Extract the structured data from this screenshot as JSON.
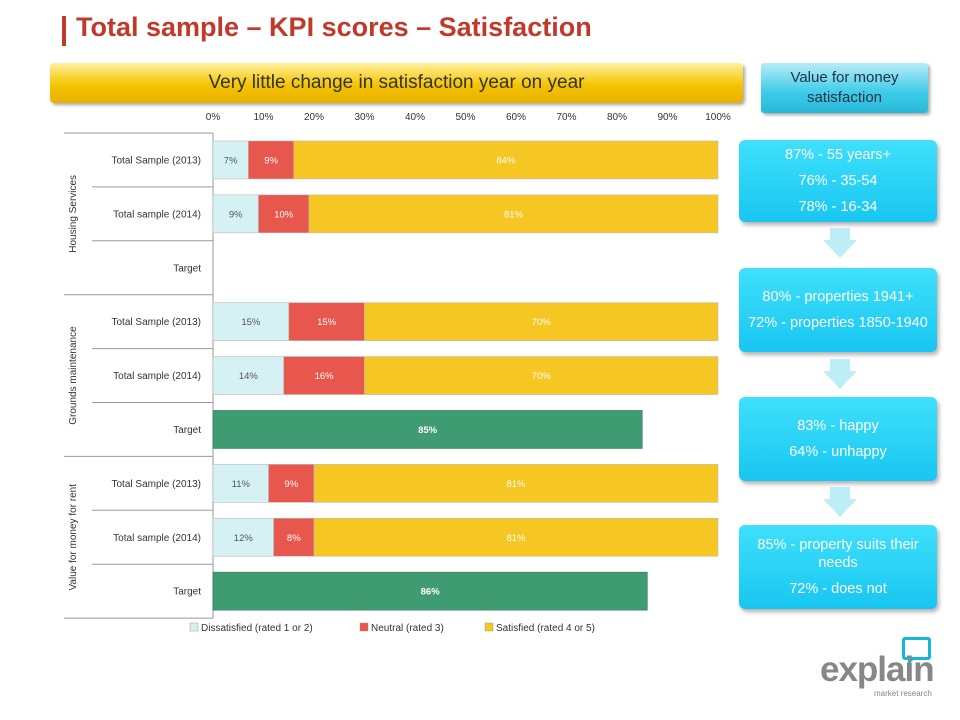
{
  "header": {
    "title": "Total sample – KPI scores – Satisfaction"
  },
  "banner": {
    "text": "Very little change in satisfaction year on year"
  },
  "side_header": {
    "text": "Value for money satisfaction"
  },
  "boxes": [
    {
      "lines": [
        "87% -  55 years+",
        "76% - 35-54",
        "78% - 16-34"
      ]
    },
    {
      "lines": [
        "80%  - properties 1941+",
        "72% - properties 1850-1940"
      ]
    },
    {
      "lines": [
        "83% - happy",
        "64% - unhappy"
      ]
    },
    {
      "lines": [
        "85% - property suits their needs",
        "72% - does not"
      ]
    }
  ],
  "logo": {
    "name": "explain",
    "tagline": "market research"
  },
  "colors": {
    "dissatisfied": "#d6f1f3",
    "neutral": "#e8574d",
    "satisfied": "#f6c623",
    "target": "#3f9b72",
    "title": "#c0392b",
    "box": "#1fcaf1"
  },
  "chart_data": {
    "type": "bar",
    "orientation": "horizontal",
    "stacked": true,
    "xlim": [
      0,
      100
    ],
    "x_ticks": [
      "0%",
      "10%",
      "20%",
      "30%",
      "40%",
      "50%",
      "60%",
      "70%",
      "80%",
      "90%",
      "100%"
    ],
    "groups": [
      {
        "name": "Housing Services",
        "rows": [
          {
            "label": "Total Sample (2013)",
            "dissatisfied": 7,
            "neutral": 9,
            "satisfied": 84
          },
          {
            "label": "Total sample (2014)",
            "dissatisfied": 9,
            "neutral": 10,
            "satisfied": 81
          },
          {
            "label": "Target"
          }
        ]
      },
      {
        "name": "Grounds maintenance",
        "rows": [
          {
            "label": "Total Sample (2013)",
            "dissatisfied": 15,
            "neutral": 15,
            "satisfied": 70
          },
          {
            "label": "Total sample (2014)",
            "dissatisfied": 14,
            "neutral": 16,
            "satisfied": 70
          },
          {
            "label": "Target",
            "target": 85
          }
        ]
      },
      {
        "name": "Value for money for rent",
        "rows": [
          {
            "label": "Total Sample (2013)",
            "dissatisfied": 11,
            "neutral": 9,
            "satisfied": 81
          },
          {
            "label": "Total sample (2014)",
            "dissatisfied": 12,
            "neutral": 8,
            "satisfied": 81
          },
          {
            "label": "Target",
            "target": 86
          }
        ]
      }
    ],
    "legend": {
      "position": "bottom",
      "items": [
        "Dissatisfied (rated 1 or 2)",
        "Neutral (rated 3)",
        "Satisfied (rated 4 or 5)"
      ]
    }
  }
}
